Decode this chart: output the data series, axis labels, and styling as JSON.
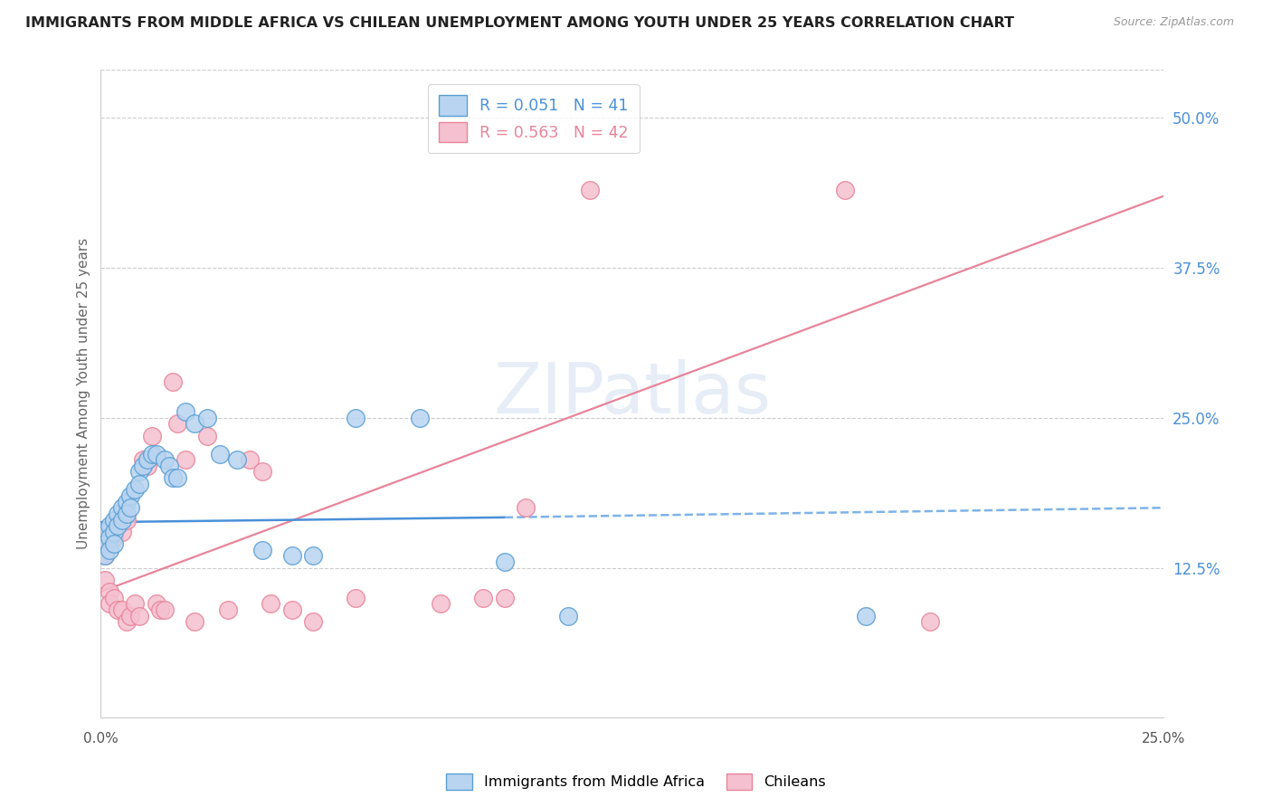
{
  "title": "IMMIGRANTS FROM MIDDLE AFRICA VS CHILEAN UNEMPLOYMENT AMONG YOUTH UNDER 25 YEARS CORRELATION CHART",
  "source": "Source: ZipAtlas.com",
  "ylabel": "Unemployment Among Youth under 25 years",
  "ytick_values": [
    0.125,
    0.25,
    0.375,
    0.5
  ],
  "ytick_labels": [
    "12.5%",
    "25.0%",
    "37.5%",
    "50.0%"
  ],
  "xlim": [
    0,
    0.25
  ],
  "ylim": [
    0.0,
    0.54
  ],
  "legend_label1": "R = 0.051   N = 41",
  "legend_label2": "R = 0.563   N = 42",
  "watermark": "ZIPatlas",
  "blue_scatter_x": [
    0.001,
    0.001,
    0.001,
    0.002,
    0.002,
    0.002,
    0.003,
    0.003,
    0.003,
    0.004,
    0.004,
    0.005,
    0.005,
    0.006,
    0.006,
    0.007,
    0.007,
    0.008,
    0.009,
    0.009,
    0.01,
    0.011,
    0.012,
    0.013,
    0.015,
    0.016,
    0.017,
    0.018,
    0.02,
    0.022,
    0.025,
    0.028,
    0.032,
    0.038,
    0.045,
    0.05,
    0.06,
    0.075,
    0.095,
    0.11,
    0.18
  ],
  "blue_scatter_y": [
    0.155,
    0.145,
    0.135,
    0.16,
    0.15,
    0.14,
    0.165,
    0.155,
    0.145,
    0.17,
    0.16,
    0.175,
    0.165,
    0.18,
    0.17,
    0.185,
    0.175,
    0.19,
    0.205,
    0.195,
    0.21,
    0.215,
    0.22,
    0.22,
    0.215,
    0.21,
    0.2,
    0.2,
    0.255,
    0.245,
    0.25,
    0.22,
    0.215,
    0.14,
    0.135,
    0.135,
    0.25,
    0.25,
    0.13,
    0.085,
    0.085
  ],
  "pink_scatter_x": [
    0.001,
    0.001,
    0.001,
    0.002,
    0.002,
    0.002,
    0.003,
    0.003,
    0.004,
    0.004,
    0.005,
    0.005,
    0.006,
    0.006,
    0.007,
    0.008,
    0.009,
    0.01,
    0.011,
    0.012,
    0.013,
    0.014,
    0.015,
    0.017,
    0.018,
    0.02,
    0.022,
    0.025,
    0.03,
    0.035,
    0.038,
    0.04,
    0.045,
    0.05,
    0.06,
    0.08,
    0.09,
    0.095,
    0.1,
    0.115,
    0.175,
    0.195
  ],
  "pink_scatter_y": [
    0.145,
    0.135,
    0.115,
    0.155,
    0.105,
    0.095,
    0.15,
    0.1,
    0.16,
    0.09,
    0.155,
    0.09,
    0.165,
    0.08,
    0.085,
    0.095,
    0.085,
    0.215,
    0.21,
    0.235,
    0.095,
    0.09,
    0.09,
    0.28,
    0.245,
    0.215,
    0.08,
    0.235,
    0.09,
    0.215,
    0.205,
    0.095,
    0.09,
    0.08,
    0.1,
    0.095,
    0.1,
    0.1,
    0.175,
    0.44,
    0.44,
    0.08
  ],
  "blue_line_x0": 0.0,
  "blue_line_x_break": 0.095,
  "blue_line_x1": 0.25,
  "blue_line_y0": 0.163,
  "blue_line_y_break": 0.167,
  "blue_line_y1": 0.175,
  "pink_line_x0": 0.0,
  "pink_line_x1": 0.25,
  "pink_line_y0": 0.105,
  "pink_line_y1": 0.435
}
